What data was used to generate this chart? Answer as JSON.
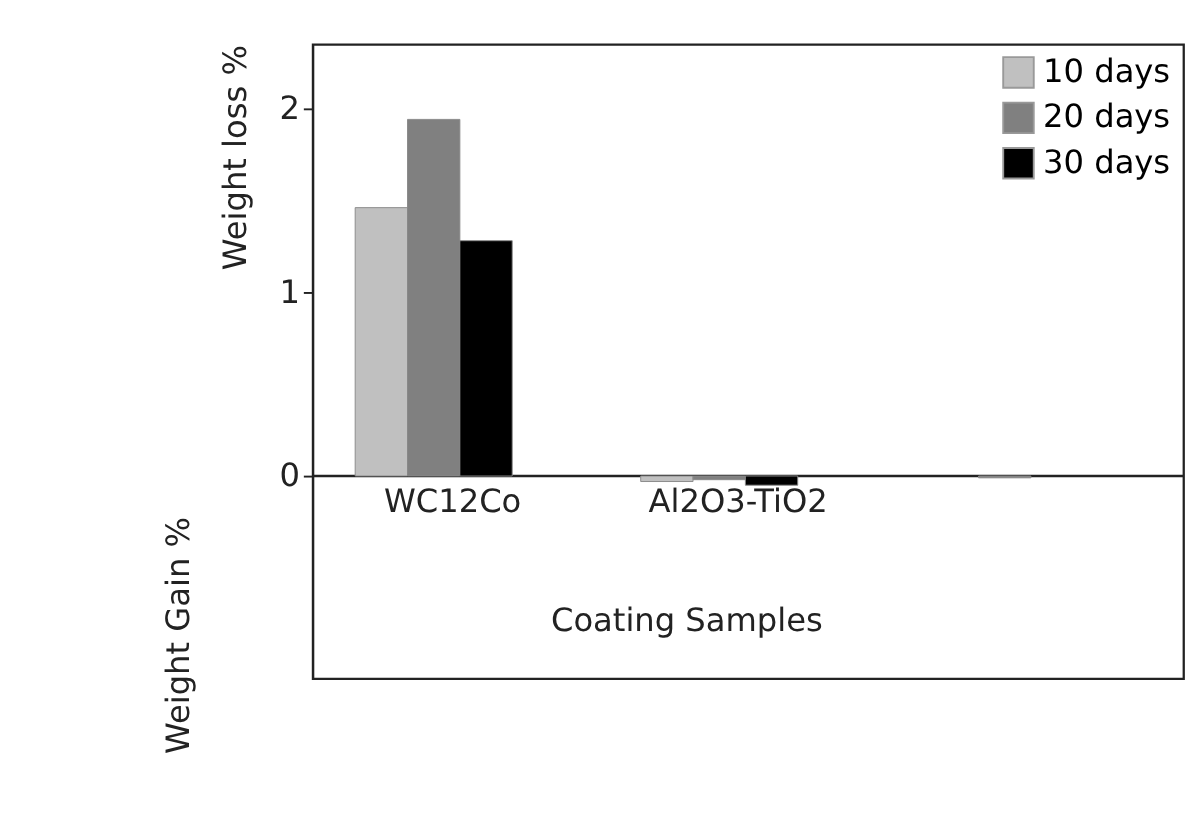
{
  "chart_data": {
    "type": "bar",
    "xlabel": "Coating Samples",
    "ylabel": "Weight loss %",
    "annotations": [
      "Weight Gain %"
    ],
    "categories": [
      "WC12Co",
      "Al2O3-TiO2",
      null
    ],
    "series": [
      {
        "name": "10 days",
        "color": "#c0c0c0",
        "values": [
          1.46,
          -0.03,
          null
        ]
      },
      {
        "name": "20 days",
        "color": "#808080",
        "values": [
          1.94,
          -0.02,
          -0.01
        ]
      },
      {
        "name": "30 days",
        "color": "#000000",
        "values": [
          1.28,
          -0.05,
          null
        ]
      }
    ],
    "ylim": [
      -1.1,
      2.35
    ],
    "yticks": [
      0,
      1,
      2
    ],
    "grid": false,
    "legend": "top right"
  }
}
